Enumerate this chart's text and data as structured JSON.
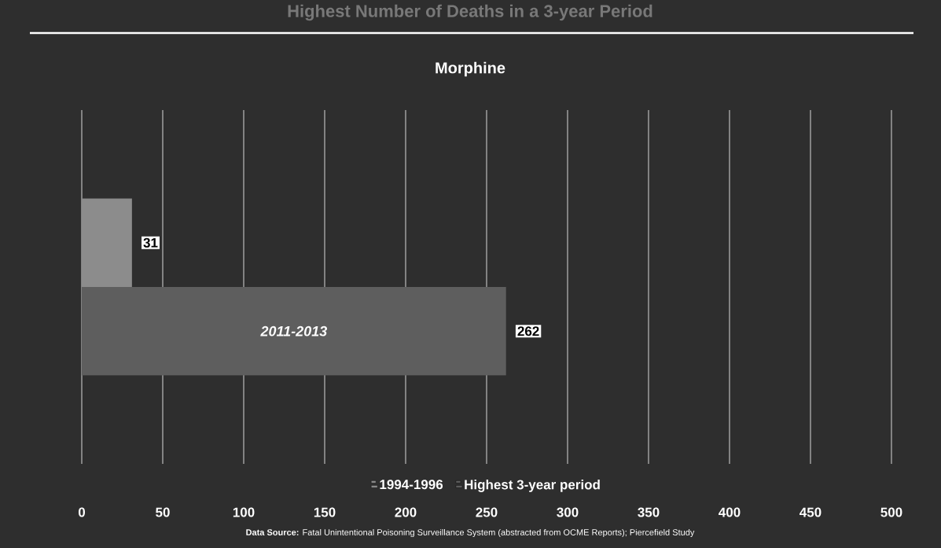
{
  "chart_data": {
    "type": "bar",
    "orientation": "horizontal",
    "title": "Highest Number of Deaths in a 3-year Period",
    "subtitle": "Morphine",
    "categories": [
      null
    ],
    "series": [
      {
        "name": "1994-1996",
        "color": "#8c8c8c",
        "values": [
          31
        ]
      },
      {
        "name": "Highest 3-year period",
        "color": "#5e5e5e",
        "values": [
          262
        ]
      }
    ],
    "xlim": [
      0,
      500
    ],
    "xticks": [
      0,
      50,
      100,
      150,
      200,
      250,
      300,
      350,
      400,
      450,
      500
    ],
    "grid": "x",
    "legend": "bottom",
    "data_labels": true,
    "annotations": [
      "2011-2013",
      "**Data Source:** Fatal Unintentional Poisoning Surveillance System (abstracted from OCME Reports); Piercefield Study"
    ]
  }
}
